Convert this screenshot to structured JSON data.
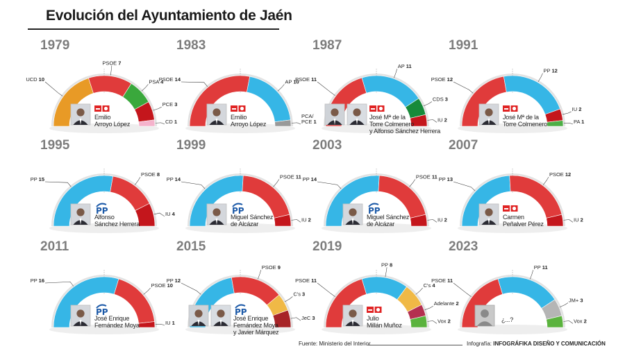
{
  "title": "Evolución del Ayuntamiento de Jaén",
  "source": "Fuente: Ministerio del Interior",
  "credit_prefix": "Infografía:",
  "credit_name": "INFOGRÁFIKA DISEÑO Y COMUNICACIÓN",
  "party_colors": {
    "UCD": "#e89a26",
    "PSOE": "#e03b3b",
    "PSA": "#3aa83c",
    "PCE": "#c4161c",
    "CD": "#f5b3cc",
    "AP": "#36b6e6",
    "CDS": "#178a3a",
    "IU": "#c4161c",
    "PP": "#36b6e6",
    "PA": "#4cae45",
    "C's": "#f0b946",
    "JeC": "#a72427",
    "Adelante": "#b43050",
    "Vox": "#5bb33e",
    "JM+": "#b5b5b5"
  },
  "logo_labels": {
    "psoe": "PSOE",
    "pp": "PP"
  },
  "chart_data": [
    {
      "type": "semicircle",
      "year": "1979",
      "mayor_lines": [
        "Emilio",
        "Arroyo López"
      ],
      "logo": "psoe",
      "photos": 1,
      "photo_icon": "mayor-photo-icon",
      "parties": [
        {
          "name": "UCD",
          "seats": 10
        },
        {
          "name": "PSOE",
          "seats": 7
        },
        {
          "name": "PSA",
          "seats": 4
        },
        {
          "name": "PCE",
          "seats": 3
        },
        {
          "name": "CD",
          "seats": 1
        }
      ]
    },
    {
      "type": "semicircle",
      "year": "1983",
      "mayor_lines": [
        "Emilio",
        "Arroyo López"
      ],
      "logo": "psoe",
      "photos": 1,
      "photo_icon": "mayor-photo-icon",
      "parties": [
        {
          "name": "PSOE",
          "seats": 14
        },
        {
          "name": "AP",
          "seats": 10
        },
        {
          "name": "PCA/\nPCE",
          "seats": 1
        }
      ]
    },
    {
      "type": "semicircle",
      "year": "1987",
      "mayor_lines": [
        "José Mª de la",
        "Torre Colmenero",
        "y Alfonso Sánchez Herrera"
      ],
      "logo": "psoe",
      "photos": 2,
      "photo_icon": "mayor-photo-icon",
      "parties": [
        {
          "name": "PSOE",
          "seats": 11
        },
        {
          "name": "AP",
          "seats": 11
        },
        {
          "name": "CDS",
          "seats": 3
        },
        {
          "name": "IU",
          "seats": 2
        }
      ]
    },
    {
      "type": "semicircle",
      "year": "1991",
      "mayor_lines": [
        "José Mª de la",
        "Torre Colmenero"
      ],
      "logo": "psoe",
      "photos": 1,
      "photo_icon": "mayor-photo-icon",
      "parties": [
        {
          "name": "PSOE",
          "seats": 12
        },
        {
          "name": "PP",
          "seats": 12
        },
        {
          "name": "IU",
          "seats": 2
        },
        {
          "name": "PA",
          "seats": 1
        }
      ]
    },
    {
      "type": "semicircle",
      "year": "1995",
      "mayor_lines": [
        "Alfonso",
        "Sánchez Herrera"
      ],
      "logo": "pp",
      "photos": 1,
      "photo_icon": "mayor-photo-icon",
      "parties": [
        {
          "name": "PP",
          "seats": 15
        },
        {
          "name": "PSOE",
          "seats": 8
        },
        {
          "name": "IU",
          "seats": 4
        }
      ]
    },
    {
      "type": "semicircle",
      "year": "1999",
      "mayor_lines": [
        "Miguel Sánchez",
        "de Alcázar"
      ],
      "logo": "pp",
      "photos": 1,
      "photo_icon": "mayor-photo-icon",
      "parties": [
        {
          "name": "PP",
          "seats": 14
        },
        {
          "name": "PSOE",
          "seats": 11
        },
        {
          "name": "IU",
          "seats": 2
        }
      ]
    },
    {
      "type": "semicircle",
      "year": "2003",
      "mayor_lines": [
        "Miguel Sánchez",
        "de Alcázar"
      ],
      "logo": "pp",
      "photos": 1,
      "photo_icon": "mayor-photo-icon",
      "parties": [
        {
          "name": "PP",
          "seats": 14
        },
        {
          "name": "PSOE",
          "seats": 11
        },
        {
          "name": "IU",
          "seats": 2
        }
      ]
    },
    {
      "type": "semicircle",
      "year": "2007",
      "mayor_lines": [
        "Carmen",
        "Peñalver Pérez"
      ],
      "logo": "psoe",
      "photos": 1,
      "photo_icon": "mayor-photo-icon",
      "parties": [
        {
          "name": "PP",
          "seats": 13
        },
        {
          "name": "PSOE",
          "seats": 12
        },
        {
          "name": "IU",
          "seats": 2
        }
      ]
    },
    {
      "type": "semicircle",
      "year": "2011",
      "mayor_lines": [
        "José Enrique",
        "Fernández Moya"
      ],
      "logo": "pp",
      "photos": 1,
      "photo_icon": "mayor-photo-icon",
      "parties": [
        {
          "name": "PP",
          "seats": 16
        },
        {
          "name": "PSOE",
          "seats": 10
        },
        {
          "name": "IU",
          "seats": 1
        }
      ]
    },
    {
      "type": "semicircle",
      "year": "2015",
      "mayor_lines": [
        "José Enrique",
        "Fernández Moya",
        "y Javier Márquez"
      ],
      "logo": "pp",
      "photos": 2,
      "photo_icon": "mayor-photo-icon",
      "parties": [
        {
          "name": "PP",
          "seats": 12
        },
        {
          "name": "PSOE",
          "seats": 9
        },
        {
          "name": "C's",
          "seats": 3
        },
        {
          "name": "JeC",
          "seats": 3
        }
      ]
    },
    {
      "type": "semicircle",
      "year": "2019",
      "mayor_lines": [
        "Julio",
        "Millán Muñoz"
      ],
      "logo": "psoe",
      "photos": 1,
      "photo_icon": "mayor-photo-icon",
      "parties": [
        {
          "name": "PSOE",
          "seats": 11
        },
        {
          "name": "PP",
          "seats": 8
        },
        {
          "name": "C's",
          "seats": 4
        },
        {
          "name": "Adelante",
          "seats": 2
        },
        {
          "name": "Vox",
          "seats": 2
        }
      ]
    },
    {
      "type": "semicircle",
      "year": "2023",
      "mayor_lines": [
        "¿...?"
      ],
      "logo": "",
      "photos": 1,
      "photo_icon": "unknown-mayor-silhouette-icon",
      "parties": [
        {
          "name": "PSOE",
          "seats": 11
        },
        {
          "name": "PP",
          "seats": 11
        },
        {
          "name": "JM+",
          "seats": 3
        },
        {
          "name": "Vox",
          "seats": 2
        }
      ]
    }
  ]
}
